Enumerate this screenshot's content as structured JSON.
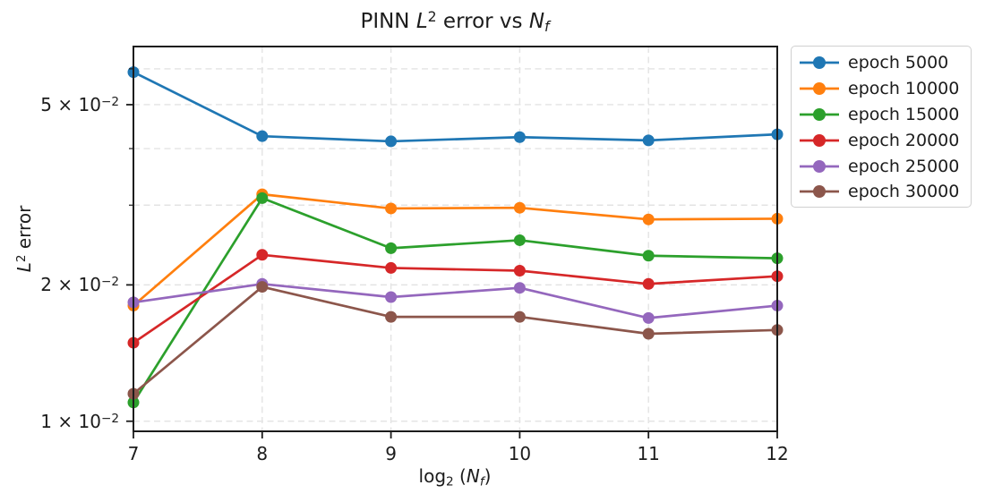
{
  "chart_data": {
    "type": "line",
    "title": "PINN L² error vs N_f",
    "xlabel": "log₂ (N_f)",
    "ylabel": "L² error",
    "x": [
      7,
      8,
      9,
      10,
      11,
      12
    ],
    "series": [
      {
        "name": "epoch 5000",
        "color": "#1f77b4",
        "values": [
          0.059,
          0.0426,
          0.0415,
          0.0424,
          0.0417,
          0.043
        ]
      },
      {
        "name": "epoch 10000",
        "color": "#ff7f0e",
        "values": [
          0.018,
          0.0317,
          0.0295,
          0.0296,
          0.0279,
          0.028
        ]
      },
      {
        "name": "epoch 15000",
        "color": "#2ca02c",
        "values": [
          0.011,
          0.0311,
          0.0241,
          0.0251,
          0.0232,
          0.0229
        ]
      },
      {
        "name": "epoch 20000",
        "color": "#d62728",
        "values": [
          0.0149,
          0.0233,
          0.0218,
          0.0215,
          0.0201,
          0.0209
        ]
      },
      {
        "name": "epoch 25000",
        "color": "#9467bd",
        "values": [
          0.0183,
          0.0201,
          0.0188,
          0.0197,
          0.0169,
          0.018
        ]
      },
      {
        "name": "epoch 30000",
        "color": "#8c564b",
        "values": [
          0.0115,
          0.0198,
          0.017,
          0.017,
          0.0156,
          0.0159
        ]
      }
    ],
    "xlim": [
      7,
      12
    ],
    "ylim": [
      0.0095,
      0.0672
    ],
    "y_scale": "log",
    "x_ticks": [
      7,
      8,
      9,
      10,
      11,
      12
    ],
    "y_major_ticks": [
      0.01,
      0.02,
      0.05
    ],
    "y_minor_ticks": [
      0.03,
      0.04,
      0.06
    ],
    "grid": true,
    "legend_position": "outside-upper-right"
  },
  "title_parts": {
    "prefix": "PINN ",
    "var1": "L",
    "sup": "2",
    "middle": " error vs ",
    "var2": "N",
    "sub": "f"
  },
  "ylabel_parts": {
    "var": "L",
    "sup": "2",
    "suffix": " error"
  },
  "xlabel_parts": {
    "fn": "log",
    "fnsub": "2",
    "open": " (",
    "var": "N",
    "varsub": "f",
    "close": ")"
  },
  "y_tick_labels": [
    {
      "value": 0.01,
      "base": "1 × 10",
      "exp": "−2"
    },
    {
      "value": 0.02,
      "base": "2 × 10",
      "exp": "−2"
    },
    {
      "value": 0.05,
      "base": "5 × 10",
      "exp": "−2"
    }
  ],
  "style": {
    "grid_color": "#e3e3e3",
    "spine_color": "#1c1c1c",
    "tick_color": "#1c1c1c",
    "legend_border_color": "#d0d0d0"
  }
}
